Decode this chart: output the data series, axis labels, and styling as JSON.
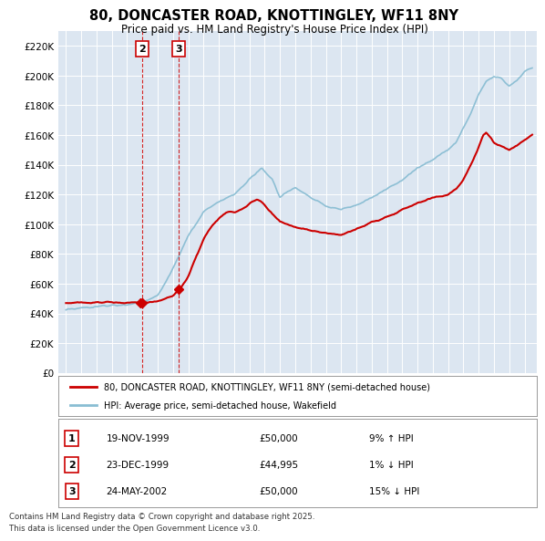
{
  "title": "80, DONCASTER ROAD, KNOTTINGLEY, WF11 8NY",
  "subtitle": "Price paid vs. HM Land Registry's House Price Index (HPI)",
  "legend_label_red": "80, DONCASTER ROAD, KNOTTINGLEY, WF11 8NY (semi-detached house)",
  "legend_label_blue": "HPI: Average price, semi-detached house, Wakefield",
  "footer": "Contains HM Land Registry data © Crown copyright and database right 2025.\nThis data is licensed under the Open Government Licence v3.0.",
  "transactions": [
    {
      "num": 1,
      "date": "19-NOV-1999",
      "price": "£50,000",
      "pct": "9% ↑ HPI",
      "year_x": 1999.89
    },
    {
      "num": 2,
      "date": "23-DEC-1999",
      "price": "£44,995",
      "pct": "1% ↓ HPI",
      "year_x": 1999.98
    },
    {
      "num": 3,
      "date": "24-MAY-2002",
      "price": "£50,000",
      "pct": "15% ↓ HPI",
      "year_x": 2002.39
    }
  ],
  "vline_years": [
    1999.98,
    2002.39
  ],
  "label_years": [
    1999.98,
    2002.39
  ],
  "label_nums": [
    "2",
    "3"
  ],
  "marker_years": [
    1999.89,
    1999.98,
    2002.39
  ],
  "marker_prices": [
    50000,
    44995,
    50000
  ],
  "ylim": [
    0,
    230000
  ],
  "xlim_start": 1994.5,
  "xlim_end": 2025.8,
  "bg_color": "#dce6f1",
  "red_color": "#cc0000",
  "blue_color": "#89bdd3",
  "grid_color": "#ffffff"
}
